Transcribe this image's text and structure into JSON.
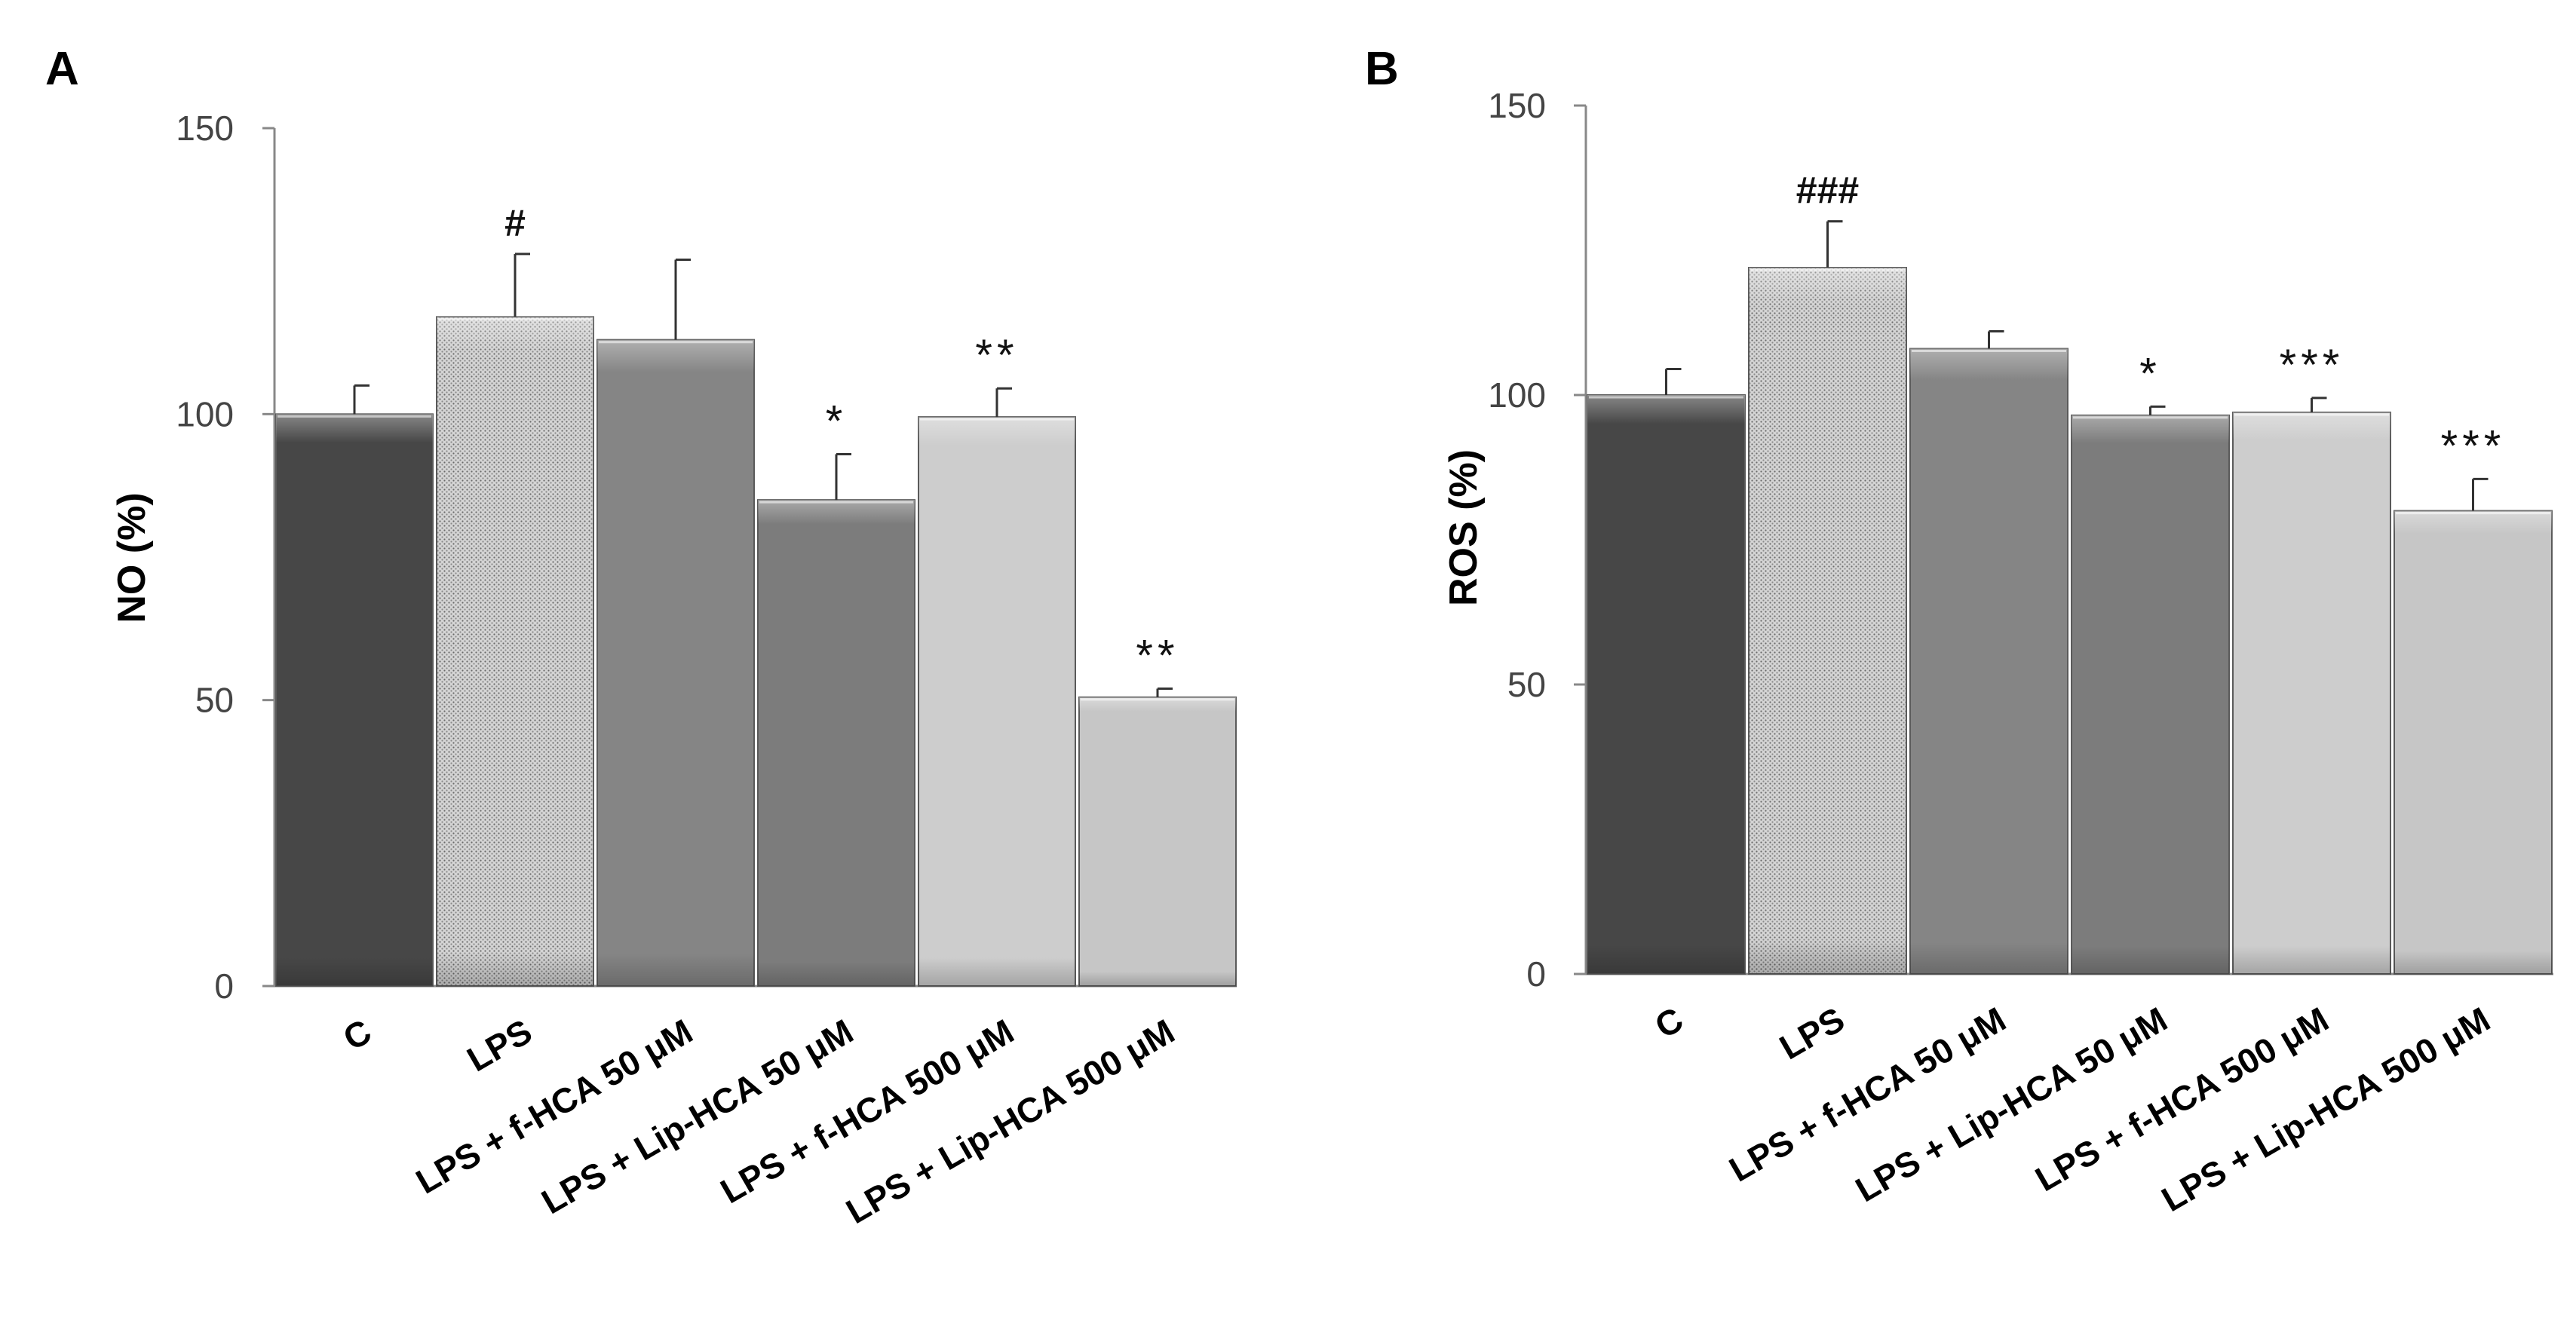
{
  "chart_data": [
    {
      "panel_label": "A",
      "type": "bar",
      "title": "",
      "xlabel": "",
      "ylabel": "NO (%)",
      "ylim": [
        0,
        150
      ],
      "yticks": [
        0,
        50,
        100,
        150
      ],
      "grid": false,
      "categories": [
        "C",
        "LPS",
        "LPS + f-HCA 50 μM",
        "LPS + Lip-HCA 50 μM",
        "LPS + f-HCA 500 μM",
        "LPS + Lip-HCA 500 μM"
      ],
      "values": [
        100,
        117,
        113,
        85,
        99.5,
        50.5
      ],
      "errors": [
        5,
        11,
        14,
        8,
        5,
        1.5
      ],
      "annotations": [
        "",
        "#",
        "",
        "*",
        "**",
        "**"
      ],
      "bar_colors": [
        "#474747",
        "#c8c8c8",
        "#858585",
        "#7c7c7c",
        "#cdcdcd",
        "#c6c6c6"
      ]
    },
    {
      "panel_label": "B",
      "type": "bar",
      "title": "",
      "xlabel": "",
      "ylabel": "ROS (%)",
      "ylim": [
        0,
        150
      ],
      "yticks": [
        0,
        50,
        100,
        150
      ],
      "grid": false,
      "categories": [
        "C",
        "LPS",
        "LPS + f-HCA 50 μM",
        "LPS + Lip-HCA 50 μM",
        "LPS + f-HCA 500 μM",
        "LPS + Lip-HCA 500 μM"
      ],
      "values": [
        100,
        122,
        108,
        96.5,
        97,
        80
      ],
      "errors": [
        4.5,
        8,
        3,
        1.5,
        2.5,
        5.5
      ],
      "annotations": [
        "",
        "###",
        "",
        "*",
        "***",
        "***"
      ],
      "bar_colors": [
        "#474747",
        "#c8c8c8",
        "#858585",
        "#7c7c7c",
        "#cdcdcd",
        "#c6c6c6"
      ]
    }
  ]
}
